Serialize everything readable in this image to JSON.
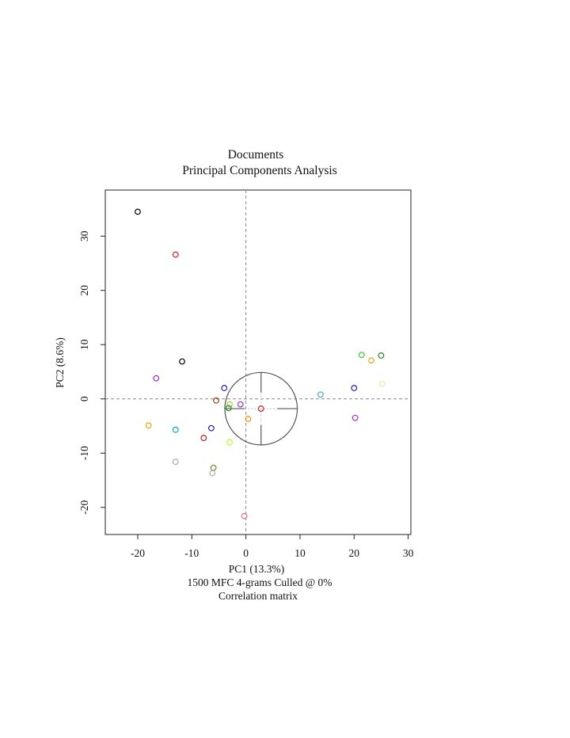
{
  "chart_data": {
    "type": "scatter",
    "title": "Documents",
    "subtitle": "Principal Components Analysis",
    "xlabel": "PC1 (13.3%)",
    "xlabel_lines": [
      "1500 MFC 4-grams Culled @ 0%",
      "Correlation matrix"
    ],
    "ylabel": "PC2 (8.6%)",
    "xlim": [
      -26,
      30.5
    ],
    "ylim": [
      -25,
      38.5
    ],
    "xticks": [
      -20,
      -10,
      0,
      10,
      20,
      30
    ],
    "yticks": [
      -20,
      -10,
      0,
      10,
      20,
      30
    ],
    "grid": false,
    "reference_lines": {
      "x": 0,
      "y": 0,
      "style": "dashed",
      "color": "#888888"
    },
    "correlation_circle": {
      "cx": 2.8,
      "cy": -1.8,
      "r": 6.7,
      "color": "#555555"
    },
    "points": [
      {
        "x": -20.0,
        "y": 34.5,
        "color": "#000000"
      },
      {
        "x": -13.0,
        "y": 26.6,
        "color": "#cc2222"
      },
      {
        "x": -11.8,
        "y": 6.9,
        "color": "#000000"
      },
      {
        "x": -16.6,
        "y": 3.8,
        "color": "#8a2be2"
      },
      {
        "x": -4.0,
        "y": 2.0,
        "color": "#1f1fb0"
      },
      {
        "x": -5.5,
        "y": -0.3,
        "color": "#8b4513"
      },
      {
        "x": -3.0,
        "y": -1.0,
        "color": "#9acd32"
      },
      {
        "x": -3.2,
        "y": -1.7,
        "color": "#228b22"
      },
      {
        "x": -1.0,
        "y": -1.0,
        "color": "#9932cc"
      },
      {
        "x": 0.4,
        "y": -3.7,
        "color": "#ff8c00"
      },
      {
        "x": 2.8,
        "y": -1.8,
        "color": "#b22222"
      },
      {
        "x": -18.0,
        "y": -4.9,
        "color": "#e6a800"
      },
      {
        "x": -13.0,
        "y": -5.7,
        "color": "#00a5c8"
      },
      {
        "x": -7.8,
        "y": -7.2,
        "color": "#b22222"
      },
      {
        "x": -6.4,
        "y": -5.4,
        "color": "#1f1fb0"
      },
      {
        "x": -3.0,
        "y": -8.0,
        "color": "#adff2f"
      },
      {
        "x": -13.0,
        "y": -11.6,
        "color": "#aaaaaa"
      },
      {
        "x": -6.0,
        "y": -12.7,
        "color": "#6b8e23"
      },
      {
        "x": -6.2,
        "y": -13.7,
        "color": "#b0b0b0"
      },
      {
        "x": -0.3,
        "y": -21.6,
        "color": "#db7093"
      },
      {
        "x": 13.8,
        "y": 0.8,
        "color": "#40b0c0"
      },
      {
        "x": 20.0,
        "y": 2.0,
        "color": "#1f1fb0"
      },
      {
        "x": 21.4,
        "y": 8.1,
        "color": "#32cd32"
      },
      {
        "x": 23.2,
        "y": 7.1,
        "color": "#daa520"
      },
      {
        "x": 25.0,
        "y": 8.0,
        "color": "#228b22"
      },
      {
        "x": 25.2,
        "y": 2.8,
        "color": "#eee8aa"
      },
      {
        "x": 20.2,
        "y": -3.5,
        "color": "#9932cc"
      }
    ]
  }
}
